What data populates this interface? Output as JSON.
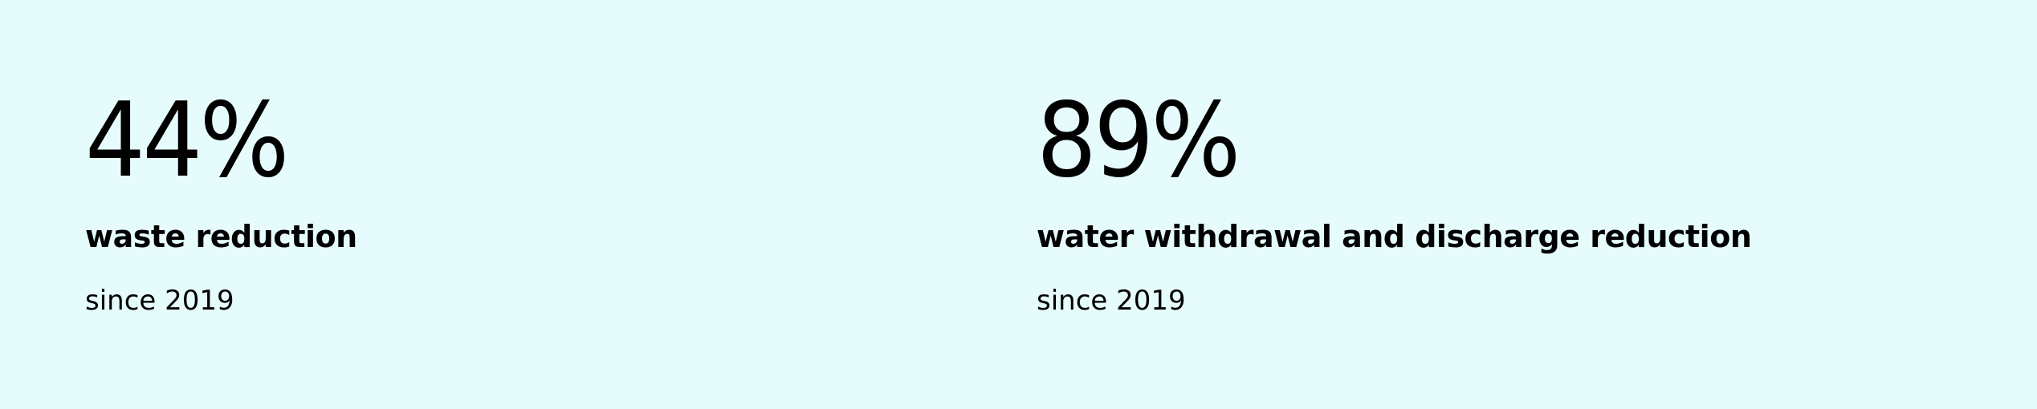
{
  "theme": {
    "background": "#e6fbfc",
    "text": "#000000"
  },
  "stats": [
    {
      "value": "44%",
      "label": "waste reduction",
      "subtext": "since 2019"
    },
    {
      "value": "89%",
      "label": "water withdrawal and discharge reduction",
      "subtext": "since 2019"
    }
  ]
}
